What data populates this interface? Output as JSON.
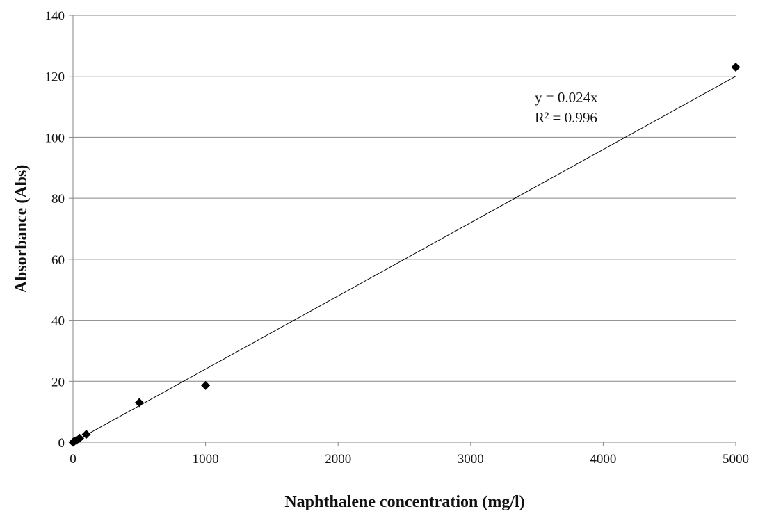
{
  "chart_data": {
    "type": "scatter",
    "xlabel": "Naphthalene concentration (mg/l)",
    "ylabel": "Absorbance (Abs)",
    "xlim": [
      0,
      5000
    ],
    "ylim": [
      0,
      140
    ],
    "xticks": [
      0,
      1000,
      2000,
      3000,
      4000,
      5000
    ],
    "yticks": [
      0,
      20,
      40,
      60,
      80,
      100,
      120,
      140
    ],
    "grid": "horizontal",
    "series": [
      {
        "marker": "diamond",
        "color": "#000000",
        "points": [
          {
            "x": 0,
            "y": 0
          },
          {
            "x": 10,
            "y": 0.3
          },
          {
            "x": 25,
            "y": 0.6
          },
          {
            "x": 50,
            "y": 1.3
          },
          {
            "x": 100,
            "y": 2.6
          },
          {
            "x": 500,
            "y": 13
          },
          {
            "x": 1000,
            "y": 18.6
          },
          {
            "x": 5000,
            "y": 123
          }
        ]
      }
    ],
    "trendline": {
      "type": "linear",
      "slope": 0.024,
      "equation": "y = 0.024x",
      "r_squared": "R² = 0.996",
      "color": "#000000"
    },
    "gridline_color": "#868686",
    "axis_color": "#868686"
  }
}
